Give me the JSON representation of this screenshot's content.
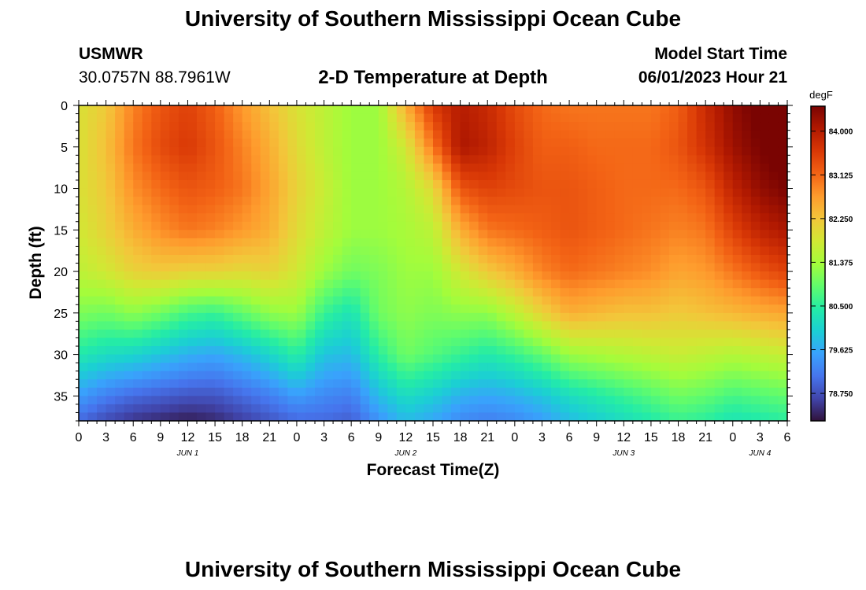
{
  "page": {
    "title": "University of Southern Mississippi Ocean Cube",
    "footer_title": "University of Southern Mississippi Ocean Cube",
    "station": "USMWR",
    "coords": "30.0757N  88.7961W",
    "plot_title": "2-D Temperature at Depth",
    "model_start_label": "Model Start Time",
    "model_start_value": "06/01/2023 Hour 21"
  },
  "chart_data": {
    "type": "heatmap",
    "title": "2-D Temperature at Depth",
    "xlabel": "Forecast Time(Z)",
    "ylabel": "Depth (ft)",
    "colorbar_label": "degF",
    "x_range_hours": [
      0,
      78
    ],
    "y_range_ft": [
      0,
      38
    ],
    "y_inverted": true,
    "x_tick_labels": [
      "0",
      "3",
      "6",
      "9",
      "12",
      "15",
      "18",
      "21",
      "0",
      "3",
      "6",
      "9",
      "12",
      "15",
      "18",
      "21",
      "0",
      "3",
      "6",
      "9",
      "12",
      "15",
      "18",
      "21",
      "0",
      "3",
      "6"
    ],
    "y_tick_labels": [
      "0",
      "5",
      "10",
      "15",
      "20",
      "25",
      "30",
      "35"
    ],
    "y_ticks": [
      0,
      5,
      10,
      15,
      20,
      25,
      30,
      35
    ],
    "date_labels": [
      {
        "text": "JUN 1",
        "hour": 12
      },
      {
        "text": "JUN 2",
        "hour": 36
      },
      {
        "text": "JUN 3",
        "hour": 60
      },
      {
        "text": "JUN 4",
        "hour": 75
      }
    ],
    "colorbar_ticks": [
      "84.000",
      "83.125",
      "82.250",
      "81.375",
      "80.500",
      "79.625",
      "78.750"
    ],
    "colorbar_tick_values": [
      84.0,
      83.125,
      82.25,
      81.375,
      80.5,
      79.625,
      78.75
    ],
    "colorbar_range": [
      78.2,
      84.5
    ],
    "colormap": [
      "#30123b",
      "#4145ab",
      "#4675ed",
      "#39a2fc",
      "#1bcfd4",
      "#24eca6",
      "#61fc6c",
      "#a4fc3b",
      "#d1e834",
      "#f3c63a",
      "#fe9b2d",
      "#f36315",
      "#d93806",
      "#b11901",
      "#7a0402"
    ],
    "profile_times_hours": [
      0,
      3,
      6,
      9,
      12,
      15,
      18,
      21,
      24,
      27,
      30,
      33,
      36,
      39,
      42,
      45,
      48,
      51,
      54,
      57,
      60,
      63,
      66,
      69,
      72,
      75,
      78
    ],
    "profile_depths_ft": [
      0,
      5,
      10,
      15,
      20,
      25,
      30,
      35,
      38
    ],
    "temperature_degF": [
      [
        81.9,
        81.9,
        81.9,
        81.8,
        81.6,
        81.1,
        80.4,
        79.5,
        79.0
      ],
      [
        82.2,
        82.3,
        82.2,
        82.1,
        81.8,
        81.0,
        80.2,
        79.2,
        78.7
      ],
      [
        82.9,
        83.0,
        82.8,
        82.5,
        82.1,
        81.2,
        80.1,
        79.0,
        78.5
      ],
      [
        83.3,
        83.4,
        83.1,
        82.8,
        82.2,
        81.0,
        79.9,
        78.9,
        78.4
      ],
      [
        83.5,
        83.6,
        83.3,
        83.0,
        82.1,
        80.7,
        79.7,
        78.8,
        78.3
      ],
      [
        83.2,
        83.3,
        83.2,
        82.9,
        82.1,
        80.6,
        79.6,
        78.8,
        78.4
      ],
      [
        82.7,
        82.9,
        83.0,
        82.7,
        82.0,
        80.9,
        79.8,
        79.0,
        78.6
      ],
      [
        82.3,
        82.5,
        82.6,
        82.5,
        82.1,
        81.2,
        80.1,
        79.2,
        78.8
      ],
      [
        81.9,
        82.0,
        82.1,
        82.0,
        81.8,
        81.3,
        80.5,
        79.5,
        79.0
      ],
      [
        81.6,
        81.6,
        81.7,
        81.6,
        81.3,
        80.6,
        79.9,
        79.3,
        79.0
      ],
      [
        81.3,
        81.3,
        81.3,
        81.3,
        81.0,
        80.3,
        79.8,
        79.2,
        78.9
      ],
      [
        81.3,
        81.3,
        81.3,
        81.3,
        81.1,
        81.0,
        80.5,
        79.8,
        79.4
      ],
      [
        82.5,
        81.8,
        81.5,
        81.4,
        81.3,
        81.2,
        81.0,
        80.2,
        79.8
      ],
      [
        83.6,
        83.0,
        82.0,
        81.6,
        81.3,
        81.1,
        80.8,
        80.0,
        79.6
      ],
      [
        84.0,
        84.1,
        83.3,
        82.5,
        81.8,
        81.2,
        80.6,
        79.7,
        79.3
      ],
      [
        83.8,
        83.9,
        83.5,
        83.0,
        82.2,
        81.2,
        80.4,
        79.6,
        79.2
      ],
      [
        83.4,
        83.5,
        83.4,
        83.1,
        82.5,
        81.6,
        80.6,
        79.7,
        79.3
      ],
      [
        83.1,
        83.2,
        83.3,
        83.2,
        82.9,
        82.1,
        80.9,
        79.9,
        79.5
      ],
      [
        83.0,
        83.2,
        83.3,
        83.3,
        83.1,
        82.5,
        81.3,
        80.2,
        79.8
      ],
      [
        83.0,
        83.1,
        83.2,
        83.2,
        83.0,
        82.4,
        81.4,
        80.4,
        80.0
      ],
      [
        83.0,
        83.1,
        83.1,
        83.1,
        82.9,
        82.3,
        81.5,
        80.6,
        80.2
      ],
      [
        83.0,
        83.1,
        83.1,
        83.0,
        82.8,
        82.3,
        81.6,
        80.8,
        80.4
      ],
      [
        83.2,
        83.3,
        83.1,
        82.9,
        82.6,
        82.2,
        81.7,
        81.0,
        80.6
      ],
      [
        83.8,
        83.7,
        83.3,
        83.0,
        82.7,
        82.3,
        81.6,
        80.9,
        80.5
      ],
      [
        84.3,
        84.2,
        83.9,
        83.5,
        83.0,
        82.4,
        81.5,
        80.7,
        80.3
      ],
      [
        84.6,
        84.5,
        84.3,
        83.9,
        83.3,
        82.5,
        81.6,
        80.8,
        80.4
      ],
      [
        84.8,
        84.7,
        84.5,
        84.1,
        83.5,
        82.6,
        81.7,
        80.9,
        80.5
      ]
    ]
  }
}
